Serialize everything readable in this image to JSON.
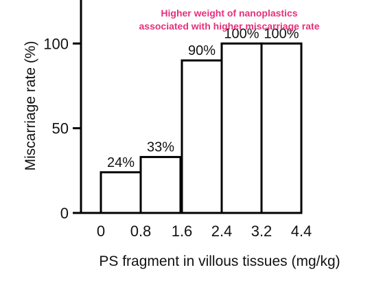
{
  "chart_data": {
    "type": "bar",
    "title": "Higher weight of nanoplastics\nassociated with higher miscarriage rate",
    "xlabel": "PS fragment  in villous tissues (mg/kg)",
    "ylabel": "Miscarriage rate (%)",
    "x_edges": [
      "0",
      "0.8",
      "1.6",
      "2.4",
      "3.2",
      "4.4"
    ],
    "categories": [
      "0–0.8",
      "0.8–1.6",
      "1.6–2.4",
      "2.4–3.2",
      "3.2–4.4"
    ],
    "values": [
      24,
      33,
      90,
      100,
      100
    ],
    "value_labels": [
      "24%",
      "33%",
      "90%",
      "100%",
      "100%"
    ],
    "yticks": [
      0,
      50,
      100
    ],
    "ylim": [
      0,
      120
    ],
    "grid": false,
    "legend": "none",
    "colors": {
      "title": "#e5307a",
      "axis": "#000000",
      "bar_fill": "#ffffff",
      "bar_stroke": "#000000",
      "text": "#111111"
    }
  }
}
